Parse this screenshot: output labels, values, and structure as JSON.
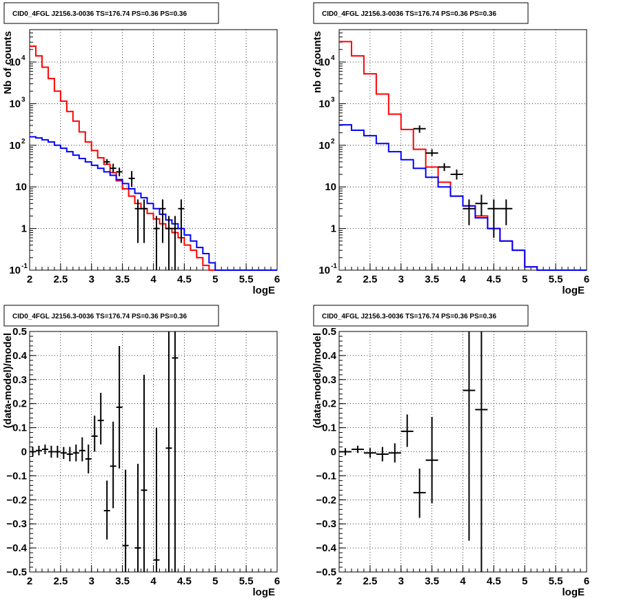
{
  "chart_data": [
    {
      "type": "histogram",
      "title": "CID0_4FGL J2156.3-0036 TS=176.74 PS=0.36 PS=0.36",
      "xlabel": "logE",
      "ylabel": "Nb of counts",
      "xlim": [
        2,
        6
      ],
      "ylim": [
        0.1,
        60000
      ],
      "log_y": true,
      "grid": true,
      "x_ticks": [
        "2",
        "2.5",
        "3",
        "3.5",
        "4",
        "4.5",
        "5",
        "5.5",
        "6"
      ],
      "y_ticks": [
        {
          "v": 0.1,
          "label": "10",
          "exp": "-1"
        },
        {
          "v": 1,
          "label": "1",
          "exp": ""
        },
        {
          "v": 10,
          "label": "10",
          "exp": ""
        },
        {
          "v": 100,
          "label": "10",
          "exp": "2"
        },
        {
          "v": 1000,
          "label": "10",
          "exp": "3"
        },
        {
          "v": 10000,
          "label": "10",
          "exp": "4"
        }
      ],
      "bin_edges": [
        2.0,
        2.1,
        2.2,
        2.3,
        2.4,
        2.5,
        2.6,
        2.7,
        2.8,
        2.9,
        3.0,
        3.1,
        3.2,
        3.3,
        3.4,
        3.5,
        3.6,
        3.7,
        3.8,
        3.9,
        4.0,
        4.1,
        4.2,
        4.3,
        4.4,
        4.5,
        4.6,
        4.7,
        4.8,
        4.9,
        5.0,
        5.1,
        5.2,
        5.3,
        5.4,
        5.5,
        5.6,
        5.7,
        5.8,
        5.9,
        6.0
      ],
      "series": [
        {
          "color": "#ff0000",
          "values": [
            24000,
            14000,
            7500,
            4000,
            2000,
            1150,
            650,
            380,
            210,
            120,
            75,
            50,
            35,
            22,
            14,
            9,
            6,
            4,
            3,
            2.3,
            1.7,
            1.3,
            1.0,
            0.8,
            0.6,
            0.4,
            0.3,
            0.2,
            0.13,
            0.1,
            0.1,
            0.1,
            0.1,
            0.1,
            0.1,
            0.1,
            0.1,
            0.1,
            0.1,
            0.1
          ]
        },
        {
          "color": "#0000ff",
          "values": [
            160,
            150,
            135,
            120,
            100,
            85,
            70,
            58,
            48,
            40,
            33,
            28,
            23,
            19,
            15,
            12,
            9,
            7,
            5.5,
            4,
            3,
            2.2,
            1.6,
            1.3,
            1.0,
            0.7,
            0.5,
            0.35,
            0.25,
            0.15,
            0.1,
            0.1,
            0.1,
            0.1,
            0.1,
            0.1,
            0.1,
            0.1,
            0.1,
            0.1
          ]
        }
      ],
      "points": [
        {
          "x": 3.25,
          "y": 40,
          "xerr": 0.05
        },
        {
          "x": 3.35,
          "y": 28,
          "xerr": 0.05,
          "ylo": 22,
          "yhi": 36
        },
        {
          "x": 3.45,
          "y": 23,
          "xerr": 0.05,
          "ylo": 18,
          "yhi": 29
        },
        {
          "x": 3.65,
          "y": 16,
          "xerr": 0.05,
          "ylo": 10,
          "yhi": 24
        },
        {
          "x": 3.75,
          "y": 3,
          "xerr": 0.05,
          "ylo": 0.45,
          "yhi": 5
        },
        {
          "x": 3.85,
          "y": 3,
          "xerr": 0.05,
          "ylo": 0.45,
          "yhi": 5
        },
        {
          "x": 4.05,
          "y": 1,
          "xerr": 0.05,
          "ylo": 0.1,
          "yhi": 2
        },
        {
          "x": 4.15,
          "y": 3,
          "xerr": 0.05,
          "ylo": 0.45,
          "yhi": 5
        },
        {
          "x": 4.25,
          "y": 1,
          "xerr": 0.05,
          "ylo": 0.1,
          "yhi": 2
        },
        {
          "x": 4.35,
          "y": 1,
          "xerr": 0.05,
          "ylo": 0.1,
          "yhi": 2
        },
        {
          "x": 4.45,
          "y": 3,
          "xerr": 0.05,
          "ylo": 0.45,
          "yhi": 5
        }
      ]
    },
    {
      "type": "histogram",
      "title": "CID0_4FGL J2156.3-0036 TS=176.74 PS=0.36 PS=0.36",
      "xlabel": "logE",
      "ylabel": "nb of counts",
      "xlim": [
        2,
        6
      ],
      "ylim": [
        0.1,
        60000
      ],
      "log_y": true,
      "grid": true,
      "x_ticks": [
        "2",
        "2.5",
        "3",
        "3.5",
        "4",
        "4.5",
        "5",
        "5.5",
        "6"
      ],
      "y_ticks": [
        {
          "v": 0.1,
          "label": "10",
          "exp": "-1"
        },
        {
          "v": 1,
          "label": "1",
          "exp": ""
        },
        {
          "v": 10,
          "label": "10",
          "exp": ""
        },
        {
          "v": 100,
          "label": "10",
          "exp": "2"
        },
        {
          "v": 1000,
          "label": "10",
          "exp": "3"
        },
        {
          "v": 10000,
          "label": "10",
          "exp": "4"
        }
      ],
      "bin_edges": [
        2.0,
        2.2,
        2.4,
        2.6,
        2.8,
        3.0,
        3.2,
        3.4,
        3.6,
        3.8,
        4.0,
        4.2,
        4.4,
        4.6,
        4.8,
        5.0,
        5.2,
        5.4,
        5.6,
        5.8,
        6.0
      ],
      "series": [
        {
          "color": "#ff0000",
          "values": [
            31000,
            14000,
            5200,
            1700,
            560,
            240,
            80,
            30,
            13,
            6,
            3.5,
            2,
            1.0,
            0.5,
            0.3,
            0.12,
            0.1,
            0.1,
            0.1,
            0.1
          ]
        },
        {
          "color": "#0000ff",
          "values": [
            310,
            230,
            170,
            110,
            70,
            45,
            28,
            17,
            10,
            6,
            3.5,
            1.8,
            1.0,
            0.5,
            0.3,
            0.12,
            0.1,
            0.1,
            0.1,
            0.1
          ]
        }
      ],
      "points": [
        {
          "x": 3.3,
          "y": 250,
          "xerr": 0.1,
          "ylo": 200,
          "yhi": 300
        },
        {
          "x": 3.5,
          "y": 65,
          "xerr": 0.1,
          "ylo": 55,
          "yhi": 80
        },
        {
          "x": 3.7,
          "y": 30,
          "xerr": 0.1,
          "ylo": 24,
          "yhi": 37
        },
        {
          "x": 3.9,
          "y": 20,
          "xerr": 0.1,
          "ylo": 15,
          "yhi": 26
        },
        {
          "x": 4.1,
          "y": 3,
          "xerr": 0.1,
          "ylo": 1.2,
          "yhi": 5
        },
        {
          "x": 4.3,
          "y": 4,
          "xerr": 0.1,
          "ylo": 2,
          "yhi": 6.5
        },
        {
          "x": 4.5,
          "y": 3,
          "xerr": 0.1,
          "ylo": 0.6,
          "yhi": 5
        },
        {
          "x": 4.7,
          "y": 3,
          "xerr": 0.1,
          "ylo": 1.2,
          "yhi": 5
        }
      ]
    },
    {
      "type": "scatter",
      "title": "CID0_4FGL J2156.3-0036 TS=176.74 PS=0.36 PS=0.36",
      "xlabel": "logE",
      "ylabel": "(data-model)/model",
      "xlim": [
        2,
        6
      ],
      "ylim": [
        -0.5,
        0.5
      ],
      "log_y": false,
      "grid": true,
      "x_ticks": [
        "2",
        "2.5",
        "3",
        "3.5",
        "4",
        "4.5",
        "5",
        "5.5",
        "6"
      ],
      "y_ticks": [
        {
          "v": -0.5,
          "label": "−0.5",
          "exp": ""
        },
        {
          "v": -0.4,
          "label": "−0.4",
          "exp": ""
        },
        {
          "v": -0.3,
          "label": "−0.3",
          "exp": ""
        },
        {
          "v": -0.2,
          "label": "−0.2",
          "exp": ""
        },
        {
          "v": -0.1,
          "label": "−0.1",
          "exp": ""
        },
        {
          "v": 0,
          "label": "0",
          "exp": ""
        },
        {
          "v": 0.1,
          "label": "0.1",
          "exp": ""
        },
        {
          "v": 0.2,
          "label": "0.2",
          "exp": ""
        },
        {
          "v": 0.3,
          "label": "0.3",
          "exp": ""
        },
        {
          "v": 0.4,
          "label": "0.4",
          "exp": ""
        },
        {
          "v": 0.5,
          "label": "0.5",
          "exp": ""
        }
      ],
      "points": [
        {
          "x": 2.05,
          "y": 0.0,
          "xerr": 0.05,
          "ylo": -0.02,
          "yhi": 0.02
        },
        {
          "x": 2.15,
          "y": 0.005,
          "xerr": 0.05,
          "ylo": -0.015,
          "yhi": 0.025
        },
        {
          "x": 2.25,
          "y": 0.01,
          "xerr": 0.05,
          "ylo": -0.01,
          "yhi": 0.03
        },
        {
          "x": 2.35,
          "y": 0.0,
          "xerr": 0.05,
          "ylo": -0.025,
          "yhi": 0.025
        },
        {
          "x": 2.45,
          "y": 0.0,
          "xerr": 0.05,
          "ylo": -0.025,
          "yhi": 0.025
        },
        {
          "x": 2.55,
          "y": -0.005,
          "xerr": 0.05,
          "ylo": -0.03,
          "yhi": 0.02
        },
        {
          "x": 2.65,
          "y": -0.01,
          "xerr": 0.05,
          "ylo": -0.04,
          "yhi": 0.02
        },
        {
          "x": 2.75,
          "y": -0.005,
          "xerr": 0.05,
          "ylo": -0.04,
          "yhi": 0.03
        },
        {
          "x": 2.85,
          "y": 0.005,
          "xerr": 0.05,
          "ylo": -0.04,
          "yhi": 0.06
        },
        {
          "x": 2.95,
          "y": -0.03,
          "xerr": 0.05,
          "ylo": -0.09,
          "yhi": 0.03
        },
        {
          "x": 3.05,
          "y": 0.065,
          "xerr": 0.05,
          "ylo": 0.0,
          "yhi": 0.15
        },
        {
          "x": 3.15,
          "y": 0.13,
          "xerr": 0.05,
          "ylo": 0.03,
          "yhi": 0.245
        },
        {
          "x": 3.25,
          "y": -0.245,
          "xerr": 0.05,
          "ylo": -0.365,
          "yhi": -0.12
        },
        {
          "x": 3.35,
          "y": -0.06,
          "xerr": 0.05,
          "ylo": -0.235,
          "yhi": 0.125
        },
        {
          "x": 3.45,
          "y": 0.185,
          "xerr": 0.05,
          "ylo": -0.07,
          "yhi": 0.44
        },
        {
          "x": 3.55,
          "y": -0.39,
          "xerr": 0.05,
          "ylo": -0.5,
          "yhi": -0.075
        },
        {
          "x": 3.75,
          "y": -0.4,
          "xerr": 0.05,
          "ylo": -0.5,
          "yhi": -0.05
        },
        {
          "x": 3.85,
          "y": -0.16,
          "xerr": 0.05,
          "ylo": -0.5,
          "yhi": 0.32
        },
        {
          "x": 4.05,
          "y": -0.45,
          "xerr": 0.05,
          "ylo": -0.5,
          "yhi": 0.1
        },
        {
          "x": 4.25,
          "y": 0.015,
          "xerr": 0.05,
          "ylo": -0.5,
          "yhi": 0.5
        },
        {
          "x": 4.35,
          "y": 0.39,
          "xerr": 0.05,
          "ylo": -0.5,
          "yhi": 0.5
        }
      ]
    },
    {
      "type": "scatter",
      "title": "CID0_4FGL J2156.3-0036 TS=176.74 PS=0.36 PS=0.36",
      "xlabel": "logE",
      "ylabel": "(data-model)/model",
      "xlim": [
        2,
        6
      ],
      "ylim": [
        -0.5,
        0.5
      ],
      "log_y": false,
      "grid": true,
      "x_ticks": [
        "2",
        "2.5",
        "3",
        "3.5",
        "4",
        "4.5",
        "5",
        "5.5",
        "6"
      ],
      "y_ticks": [
        {
          "v": -0.5,
          "label": "−0.5",
          "exp": ""
        },
        {
          "v": -0.4,
          "label": "−0.4",
          "exp": ""
        },
        {
          "v": -0.3,
          "label": "−0.3",
          "exp": ""
        },
        {
          "v": -0.2,
          "label": "−0.2",
          "exp": ""
        },
        {
          "v": -0.1,
          "label": "−0.1",
          "exp": ""
        },
        {
          "v": 0,
          "label": "0",
          "exp": ""
        },
        {
          "v": 0.1,
          "label": "0.1",
          "exp": ""
        },
        {
          "v": 0.2,
          "label": "0.2",
          "exp": ""
        },
        {
          "v": 0.3,
          "label": "0.3",
          "exp": ""
        },
        {
          "v": 0.4,
          "label": "0.4",
          "exp": ""
        },
        {
          "v": 0.5,
          "label": "0.5",
          "exp": ""
        }
      ],
      "points": [
        {
          "x": 2.1,
          "y": 0.0,
          "xerr": 0.1,
          "ylo": -0.015,
          "yhi": 0.015
        },
        {
          "x": 2.3,
          "y": 0.01,
          "xerr": 0.1,
          "ylo": -0.005,
          "yhi": 0.025
        },
        {
          "x": 2.5,
          "y": -0.005,
          "xerr": 0.1,
          "ylo": -0.025,
          "yhi": 0.015
        },
        {
          "x": 2.7,
          "y": -0.01,
          "xerr": 0.1,
          "ylo": -0.04,
          "yhi": 0.02
        },
        {
          "x": 2.9,
          "y": -0.005,
          "xerr": 0.1,
          "ylo": -0.045,
          "yhi": 0.035
        },
        {
          "x": 3.1,
          "y": 0.085,
          "xerr": 0.1,
          "ylo": 0.02,
          "yhi": 0.155
        },
        {
          "x": 3.3,
          "y": -0.17,
          "xerr": 0.1,
          "ylo": -0.275,
          "yhi": -0.07
        },
        {
          "x": 3.5,
          "y": -0.035,
          "xerr": 0.1,
          "ylo": -0.215,
          "yhi": 0.145
        },
        {
          "x": 4.1,
          "y": 0.255,
          "xerr": 0.1,
          "ylo": -0.37,
          "yhi": 0.5
        },
        {
          "x": 4.3,
          "y": 0.175,
          "xerr": 0.1,
          "ylo": -0.5,
          "yhi": 0.5
        }
      ]
    }
  ]
}
